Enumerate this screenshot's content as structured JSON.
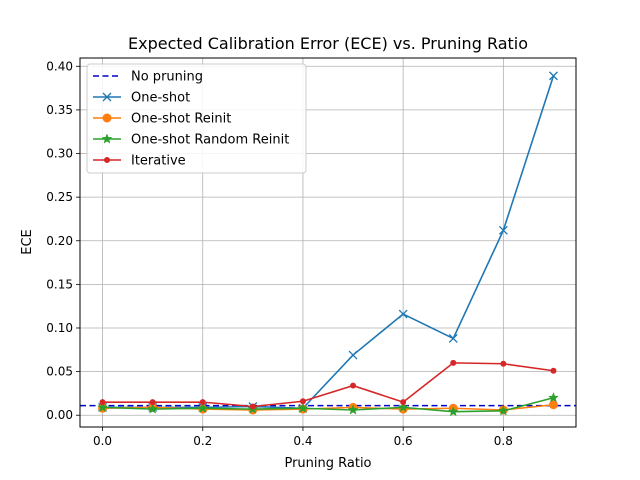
{
  "chart_data": {
    "type": "line",
    "title": "Expected Calibration Error (ECE) vs. Pruning Ratio",
    "xlabel": "Pruning Ratio",
    "ylabel": "ECE",
    "xlim": [
      -0.045,
      0.945
    ],
    "ylim": [
      -0.0135,
      0.4095
    ],
    "xticks": [
      "0.0",
      "0.2",
      "0.4",
      "0.6",
      "0.8"
    ],
    "xtick_values": [
      0.0,
      0.2,
      0.4,
      0.6,
      0.8
    ],
    "yticks": [
      "0.00",
      "0.05",
      "0.10",
      "0.15",
      "0.20",
      "0.25",
      "0.30",
      "0.35",
      "0.40"
    ],
    "ytick_values": [
      0.0,
      0.05,
      0.1,
      0.15,
      0.2,
      0.25,
      0.3,
      0.35,
      0.4
    ],
    "grid": true,
    "legend_position": "top-left",
    "x": [
      0.0,
      0.1,
      0.2,
      0.3,
      0.4,
      0.5,
      0.6,
      0.7,
      0.8,
      0.9
    ],
    "baseline": {
      "name": "No pruning",
      "value": 0.011,
      "color": "#0000cc",
      "style": "dashed"
    },
    "series": [
      {
        "name": "One-shot",
        "color": "#1f77b4",
        "marker": "x",
        "values": [
          0.009,
          0.009,
          0.009,
          0.01,
          0.008,
          0.069,
          0.116,
          0.088,
          0.212,
          0.389
        ]
      },
      {
        "name": "One-shot Reinit",
        "color": "#ff7f0e",
        "marker": "circle",
        "values": [
          0.008,
          0.009,
          0.007,
          0.006,
          0.007,
          0.009,
          0.007,
          0.008,
          0.006,
          0.012
        ]
      },
      {
        "name": "One-shot Random Reinit",
        "color": "#2ca02c",
        "marker": "star",
        "values": [
          0.009,
          0.007,
          0.008,
          0.007,
          0.008,
          0.006,
          0.009,
          0.004,
          0.005,
          0.02
        ]
      },
      {
        "name": "Iterative",
        "color": "#d62728",
        "marker": "dot",
        "values": [
          0.015,
          0.015,
          0.015,
          0.01,
          0.016,
          0.034,
          0.015,
          0.06,
          0.059,
          0.051
        ]
      }
    ]
  }
}
